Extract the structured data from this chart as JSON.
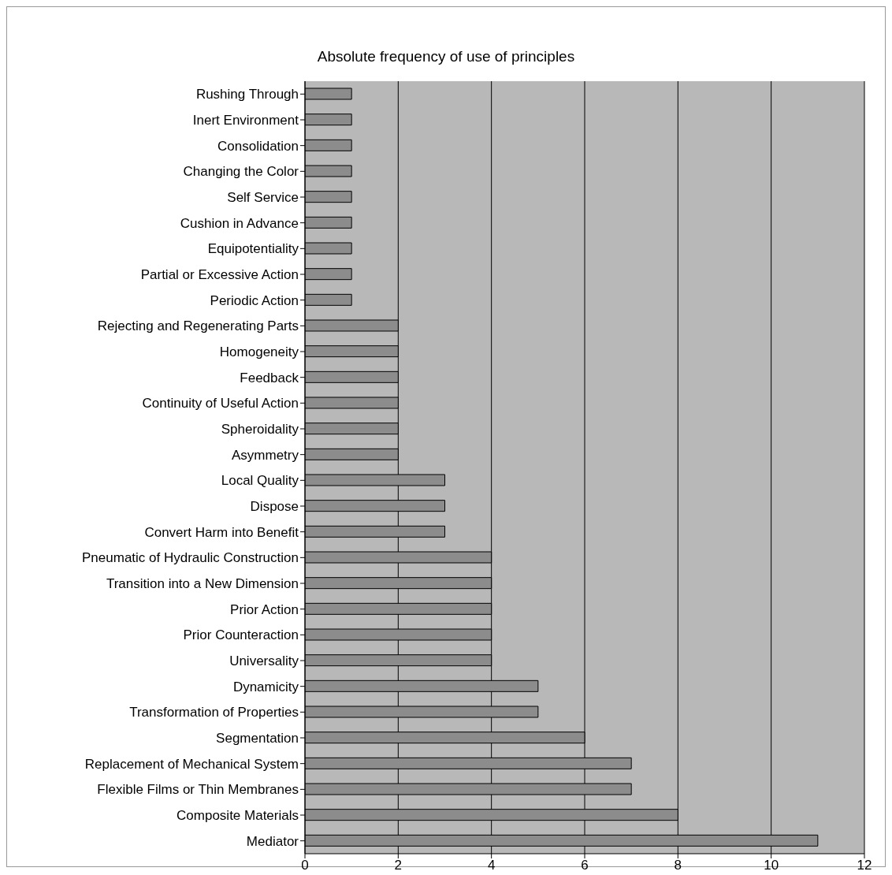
{
  "chart_data": {
    "type": "bar",
    "orientation": "horizontal",
    "title": "Absolute frequency of use of principles",
    "categories": [
      "Rushing Through",
      "Inert Environment",
      "Consolidation",
      "Changing the Color",
      "Self Service",
      "Cushion in Advance",
      "Equipotentiality",
      "Partial or Excessive Action",
      "Periodic Action",
      "Rejecting and Regenerating Parts",
      "Homogeneity",
      "Feedback",
      "Continuity of Useful Action",
      "Spheroidality",
      "Asymmetry",
      "Local Quality",
      "Dispose",
      "Convert Harm into Benefit",
      "Pneumatic of Hydraulic Construction",
      "Transition into a New Dimension",
      "Prior Action",
      "Prior Counteraction",
      "Universality",
      "Dynamicity",
      "Transformation of Properties",
      "Segmentation",
      "Replacement of Mechanical System",
      "Flexible Films or Thin Membranes",
      "Composite Materials",
      "Mediator"
    ],
    "values": [
      1,
      1,
      1,
      1,
      1,
      1,
      1,
      1,
      1,
      2,
      2,
      2,
      2,
      2,
      2,
      3,
      3,
      3,
      4,
      4,
      4,
      4,
      4,
      5,
      5,
      6,
      7,
      7,
      8,
      11
    ],
    "color": "#8c8c8c",
    "xlim": [
      0,
      12
    ],
    "xticks": [
      0,
      2,
      4,
      6,
      8,
      10,
      12
    ],
    "grid": "x"
  }
}
